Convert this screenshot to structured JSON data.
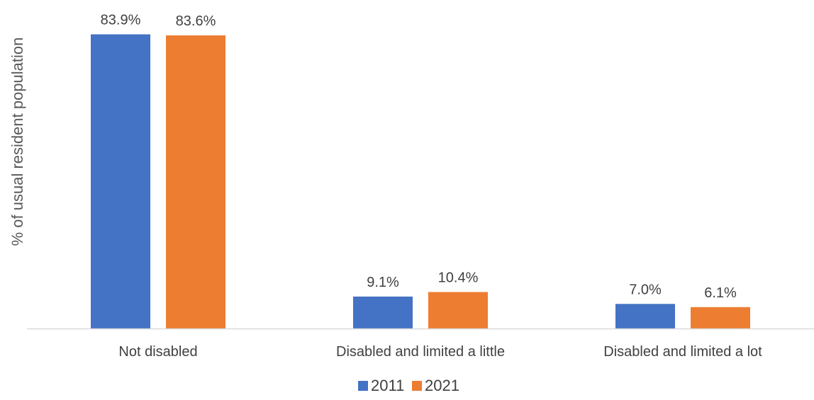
{
  "chart_data": {
    "type": "bar",
    "title": "",
    "xlabel": "",
    "ylabel": "% of usual resident population",
    "categories": [
      "Not disabled",
      "Disabled and limited a little",
      "Disabled and limited a lot"
    ],
    "series": [
      {
        "name": "2011",
        "color": "#4472C4",
        "values": [
          83.9,
          9.1,
          7.0
        ],
        "labels": [
          "83.9%",
          "9.1%",
          "7.0%"
        ]
      },
      {
        "name": "2021",
        "color": "#ED7D31",
        "values": [
          83.6,
          10.4,
          6.1
        ],
        "labels": [
          "83.6%",
          "10.4%",
          "6.1%"
        ]
      }
    ],
    "ylim": [
      0,
      84
    ],
    "grid": false,
    "legend_position": "bottom",
    "axis_color": "#D9D9D9"
  }
}
